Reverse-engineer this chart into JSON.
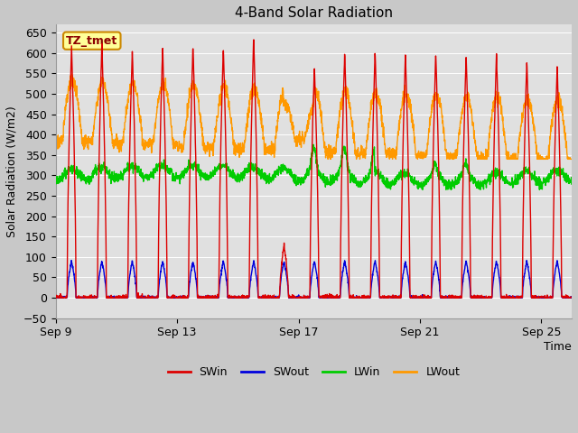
{
  "title": "4-Band Solar Radiation",
  "xlabel": "Time",
  "ylabel": "Solar Radiation (W/m2)",
  "ylim": [
    -50,
    670
  ],
  "yticks": [
    -50,
    0,
    50,
    100,
    150,
    200,
    250,
    300,
    350,
    400,
    450,
    500,
    550,
    600,
    650
  ],
  "xtick_labels": [
    "Sep 9",
    "Sep 13",
    "Sep 17",
    "Sep 21",
    "Sep 25"
  ],
  "xtick_pos": [
    0,
    4,
    8,
    12,
    16
  ],
  "fig_bg_color": "#c8c8c8",
  "plot_bg_color": "#e0e0e0",
  "grid_color": "#ffffff",
  "colors": {
    "SWin": "#dd0000",
    "SWout": "#0000dd",
    "LWin": "#00cc00",
    "LWout": "#ff9900"
  },
  "annotation_text": "TZ_tmet",
  "annotation_bg": "#ffff99",
  "annotation_border": "#cc8800",
  "n_days": 17,
  "legend_entries": [
    "SWin",
    "SWout",
    "LWin",
    "LWout"
  ]
}
